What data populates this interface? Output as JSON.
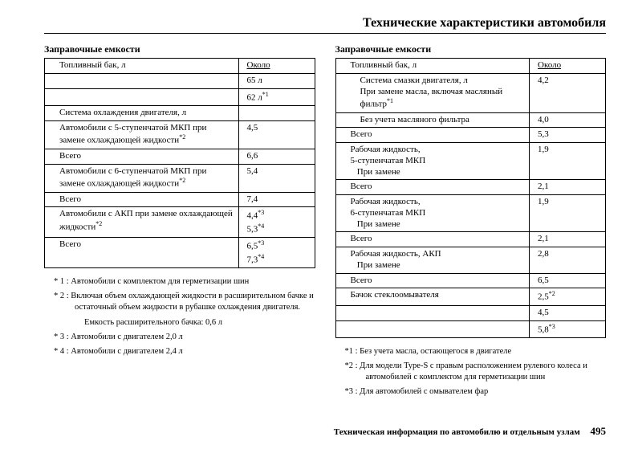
{
  "page_title": "Технические характеристики автомобиля",
  "footer_text": "Техническая информация по автомобилю и отдельным узлам",
  "page_number": "495",
  "left": {
    "section_title": "Заправочные емкости",
    "header_label": "Топливный бак, л",
    "header_value": "Около",
    "rows": [
      {
        "label": "",
        "value": "65 л"
      },
      {
        "label": "",
        "value": "62 л",
        "sup": "*1"
      },
      {
        "label": "Система охлаждения двигателя, л",
        "value": ""
      },
      {
        "label": "Автомобили с 5-ступенчатой МКП при замене охлаждающей жидкости",
        "sup_label": "*2",
        "value": "4,5"
      },
      {
        "label": "Всего",
        "value": "6,6"
      },
      {
        "label": "Автомобили с 6-ступенчатой МКП при замене охлаждающей жидкости",
        "sup_label": "*2",
        "value": "5,4"
      },
      {
        "label": "Всего",
        "value": "7,4"
      },
      {
        "label": "Автомобили с АКП при замене охлаждающей жидкости",
        "sup_label": "*2",
        "value": "4,4",
        "sup": "*3",
        "value2": "5,3",
        "sup2": "*4"
      },
      {
        "label": "Всего",
        "value": "6,5",
        "sup": "*3",
        "value2": "7,3",
        "sup2": "*4"
      }
    ],
    "notes": [
      {
        "marker": "* 1 :",
        "text": "Автомобили с комплектом для герметизации шин"
      },
      {
        "marker": "* 2 :",
        "text": "Включая объем охлаждающей жидкости в расширительном бачке и остаточный объем жидкости в рубашке охлаждения двигателя."
      },
      {
        "sub": true,
        "text": "Емкость расширительного бачка: 0,6 л"
      },
      {
        "marker": "* 3 :",
        "text": "Автомобили с двигателем 2,0 л"
      },
      {
        "marker": "* 4 :",
        "text": "Автомобили с двигателем 2,4 л"
      }
    ]
  },
  "right": {
    "section_title": "Заправочные емкости",
    "header_label": "Топливный бак, л",
    "header_value": "Около",
    "rows": [
      {
        "label": "Система смазки двигателя, л\nПри замене масла, включая масляный фильтр",
        "sup_label": "*1",
        "value": "4,2",
        "indent": true
      },
      {
        "label": "Без учета масляного фильтра",
        "value": "4,0",
        "indent": true
      },
      {
        "label": "Всего",
        "value": "5,3"
      },
      {
        "label": "Рабочая жидкость,\n5-ступенчатая МКП\n   При замене",
        "value": "1,9"
      },
      {
        "label": "Всего",
        "value": "2,1"
      },
      {
        "label": "Рабочая жидкость,\n6-ступенчатая МКП\n   При замене",
        "value": "1,9"
      },
      {
        "label": "Всего",
        "value": "2,1"
      },
      {
        "label": "Рабочая жидкость, АКП\n   При замене",
        "value": "2,8"
      },
      {
        "label": "Всего",
        "value": "6,5"
      },
      {
        "label": "Бачок стеклоомывателя",
        "value": "2,5",
        "sup": "*2"
      },
      {
        "label": "",
        "value": "4,5"
      },
      {
        "label": "",
        "value": "5,8",
        "sup": "*3"
      }
    ],
    "notes": [
      {
        "marker": "*1 :",
        "text": "Без учета масла, остающегося в двигателе"
      },
      {
        "marker": "*2 :",
        "text": "Для модели Type-S с правым расположением рулевого колеса и автомобилей с комплектом для герметизации шин"
      },
      {
        "marker": "*3 :",
        "text": "Для автомобилей с омывателем фар"
      }
    ]
  }
}
